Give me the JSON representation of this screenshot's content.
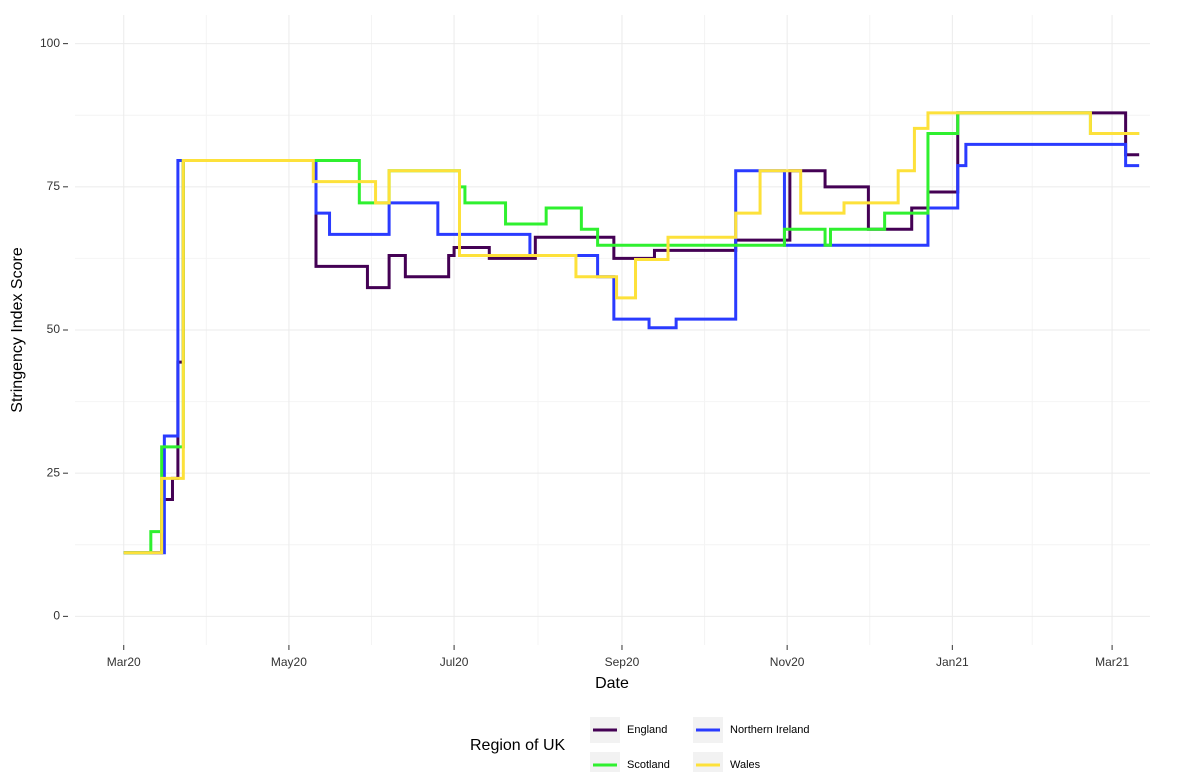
{
  "chart_data": {
    "type": "line",
    "x_label": "Date",
    "y_label": "Stringency Index Score",
    "legend_title": "Region of UK",
    "legend": "bottom",
    "grid": true,
    "xlim": [
      "2020-02-12",
      "2021-03-15"
    ],
    "xticks": [
      {
        "value": "2020-03-01",
        "label": "Mar20"
      },
      {
        "value": "2020-05-01",
        "label": "May20"
      },
      {
        "value": "2020-07-01",
        "label": "Jul20"
      },
      {
        "value": "2020-09-01",
        "label": "Sep20"
      },
      {
        "value": "2020-11-01",
        "label": "Nov20"
      },
      {
        "value": "2021-01-01",
        "label": "Jan21"
      },
      {
        "value": "2021-03-01",
        "label": "Mar21"
      }
    ],
    "ylim": [
      -5,
      105
    ],
    "yticks": [
      0,
      25,
      50,
      75,
      100
    ],
    "series": [
      {
        "name": "England",
        "color": "#440154",
        "x": [
          "2020-03-01",
          "2020-03-15",
          "2020-03-19",
          "2020-03-21",
          "2020-03-23",
          "2020-05-11",
          "2020-05-30",
          "2020-06-07",
          "2020-06-13",
          "2020-06-29",
          "2020-07-01",
          "2020-07-14",
          "2020-07-31",
          "2020-08-29",
          "2020-09-13",
          "2020-10-13",
          "2020-11-02",
          "2020-11-15",
          "2020-12-01",
          "2020-12-17",
          "2020-12-23",
          "2021-01-03",
          "2021-03-06",
          "2021-03-11"
        ],
        "values": [
          11.1,
          20.4,
          24.1,
          44.4,
          79.6,
          61.1,
          57.4,
          63,
          59.3,
          63,
          64.4,
          62.5,
          66.2,
          62.5,
          63.9,
          65.7,
          77.8,
          75,
          67.6,
          71.3,
          74.1,
          87.9,
          80.6,
          80.6
        ]
      },
      {
        "name": "Northern Ireland",
        "color": "#2a3bff",
        "x": [
          "2020-03-01",
          "2020-03-16",
          "2020-03-21",
          "2020-05-11",
          "2020-05-16",
          "2020-06-07",
          "2020-06-25",
          "2020-07-29",
          "2020-08-23",
          "2020-08-29",
          "2020-09-11",
          "2020-09-21",
          "2020-10-13",
          "2020-10-31",
          "2020-12-23",
          "2021-01-03",
          "2021-01-06",
          "2021-03-06",
          "2021-03-11"
        ],
        "values": [
          11.1,
          31.5,
          79.6,
          70.4,
          66.7,
          72.2,
          66.7,
          63,
          59.3,
          51.9,
          50.4,
          51.9,
          77.8,
          64.8,
          71.3,
          78.7,
          82.4,
          78.7,
          78.7
        ]
      },
      {
        "name": "Scotland",
        "color": "#2ff02f",
        "x": [
          "2020-03-01",
          "2020-03-11",
          "2020-03-15",
          "2020-03-23",
          "2020-05-27",
          "2020-06-07",
          "2020-07-03",
          "2020-07-05",
          "2020-07-20",
          "2020-08-04",
          "2020-08-17",
          "2020-08-23",
          "2020-10-31",
          "2020-11-15",
          "2020-11-17",
          "2020-12-07",
          "2020-12-23",
          "2021-01-03",
          "2021-02-21",
          "2021-03-11"
        ],
        "values": [
          11.1,
          14.8,
          29.6,
          79.6,
          72.2,
          77.8,
          75,
          72.2,
          68.5,
          71.3,
          67.6,
          64.8,
          67.6,
          64.8,
          67.6,
          70.4,
          84.3,
          87.9,
          84.3,
          84.3
        ]
      },
      {
        "name": "Wales",
        "color": "#fde13a",
        "x": [
          "2020-03-01",
          "2020-03-15",
          "2020-03-23",
          "2020-05-10",
          "2020-06-02",
          "2020-06-07",
          "2020-07-03",
          "2020-08-15",
          "2020-08-30",
          "2020-09-06",
          "2020-09-18",
          "2020-10-13",
          "2020-10-22",
          "2020-11-06",
          "2020-11-22",
          "2020-12-12",
          "2020-12-18",
          "2020-12-23",
          "2021-02-21",
          "2021-03-11"
        ],
        "values": [
          11.1,
          24.1,
          79.6,
          75.9,
          72.2,
          77.8,
          63,
          59.3,
          55.6,
          62.3,
          66.2,
          70.4,
          77.8,
          70.4,
          72.2,
          77.8,
          85.2,
          87.9,
          84.3,
          84.3
        ]
      }
    ]
  }
}
